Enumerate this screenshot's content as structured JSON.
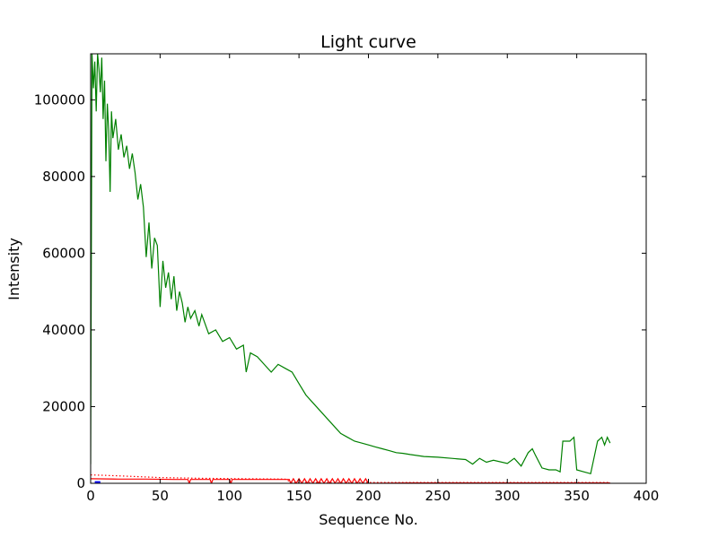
{
  "chart_data": {
    "type": "line",
    "title": "Light curve",
    "xlabel": "Sequence No.",
    "ylabel": "Intensity",
    "xlim": [
      0,
      400
    ],
    "ylim": [
      0,
      112000
    ],
    "xticks": [
      0,
      50,
      100,
      150,
      200,
      250,
      300,
      350,
      400
    ],
    "yticks": [
      0,
      20000,
      40000,
      60000,
      80000,
      100000
    ],
    "grid": false,
    "legend": "none",
    "series": [
      {
        "color": "#008000",
        "style": "solid",
        "x": [
          0,
          1,
          2,
          3,
          4,
          5,
          6,
          7,
          8,
          9,
          10,
          11,
          12,
          13,
          14,
          15,
          16,
          18,
          20,
          22,
          24,
          26,
          28,
          30,
          32,
          34,
          36,
          38,
          40,
          42,
          44,
          46,
          48,
          50,
          52,
          54,
          56,
          58,
          60,
          62,
          64,
          66,
          68,
          70,
          72,
          75,
          78,
          80,
          85,
          90,
          95,
          100,
          105,
          110,
          112,
          115,
          120,
          125,
          130,
          135,
          140,
          145,
          150,
          155,
          160,
          165,
          170,
          175,
          180,
          185,
          190,
          195,
          200,
          205,
          210,
          215,
          220,
          225,
          230,
          240,
          250,
          260,
          270,
          275,
          280,
          285,
          290,
          300,
          305,
          310,
          315,
          318,
          320,
          325,
          330,
          335,
          338,
          340,
          345,
          348,
          350,
          355,
          360,
          365,
          368,
          370,
          372,
          374
        ],
        "y": [
          5000,
          112000,
          103000,
          110000,
          97000,
          112000,
          108000,
          102000,
          111000,
          95000,
          105000,
          84000,
          99000,
          92000,
          76000,
          97000,
          90000,
          95000,
          87000,
          91000,
          85000,
          88000,
          82000,
          86000,
          81000,
          74000,
          78000,
          72000,
          59000,
          68000,
          56000,
          64000,
          62000,
          46000,
          58000,
          51000,
          55000,
          48000,
          54000,
          45000,
          50000,
          47000,
          42000,
          46000,
          43000,
          45000,
          41000,
          44000,
          39000,
          40000,
          37000,
          38000,
          35000,
          36000,
          29000,
          34000,
          33000,
          31000,
          29000,
          31000,
          30000,
          29000,
          26000,
          23000,
          21000,
          19000,
          17000,
          15000,
          13000,
          12000,
          11000,
          10500,
          10000,
          9500,
          9000,
          8500,
          8000,
          7800,
          7500,
          7000,
          6800,
          6500,
          6200,
          5000,
          6500,
          5500,
          6000,
          5200,
          6500,
          4500,
          8000,
          9000,
          7500,
          4000,
          3500,
          3500,
          3000,
          11000,
          11000,
          12000,
          3500,
          3000,
          2500,
          11000,
          12000,
          10000,
          12000,
          10500
        ]
      },
      {
        "color": "#ff0000",
        "style": "solid",
        "x": [
          0,
          20,
          40,
          60,
          70,
          71,
          72,
          80,
          86,
          87,
          88,
          100,
          101,
          102,
          120,
          143,
          144,
          146,
          148,
          150,
          152,
          154,
          156,
          158,
          160,
          162,
          164,
          166,
          168,
          170,
          172,
          174,
          176,
          178,
          180,
          182,
          184,
          186,
          188,
          190,
          192,
          194,
          196,
          198,
          200,
          230,
          260,
          300,
          340,
          374
        ],
        "y": [
          1200,
          1100,
          1100,
          1000,
          1000,
          0,
          1000,
          1000,
          1000,
          0,
          1000,
          1000,
          0,
          1000,
          1000,
          1000,
          0,
          1200,
          0,
          1200,
          0,
          1200,
          0,
          1200,
          0,
          1200,
          0,
          1200,
          0,
          1200,
          0,
          1200,
          0,
          1200,
          0,
          1200,
          0,
          1200,
          0,
          1200,
          0,
          1200,
          0,
          1200,
          0,
          100,
          100,
          100,
          100,
          100
        ]
      },
      {
        "color": "#ff0000",
        "style": "dotted",
        "x": [
          0,
          15,
          30,
          50,
          80,
          110,
          140,
          145,
          150,
          200,
          250,
          300,
          350,
          374
        ],
        "y": [
          2200,
          2000,
          1800,
          1500,
          1300,
          1200,
          1100,
          200,
          200,
          200,
          200,
          200,
          200,
          200
        ]
      },
      {
        "color": "#0000ff",
        "style": "solid",
        "x": [
          3,
          7
        ],
        "y": [
          200,
          200
        ]
      }
    ]
  }
}
